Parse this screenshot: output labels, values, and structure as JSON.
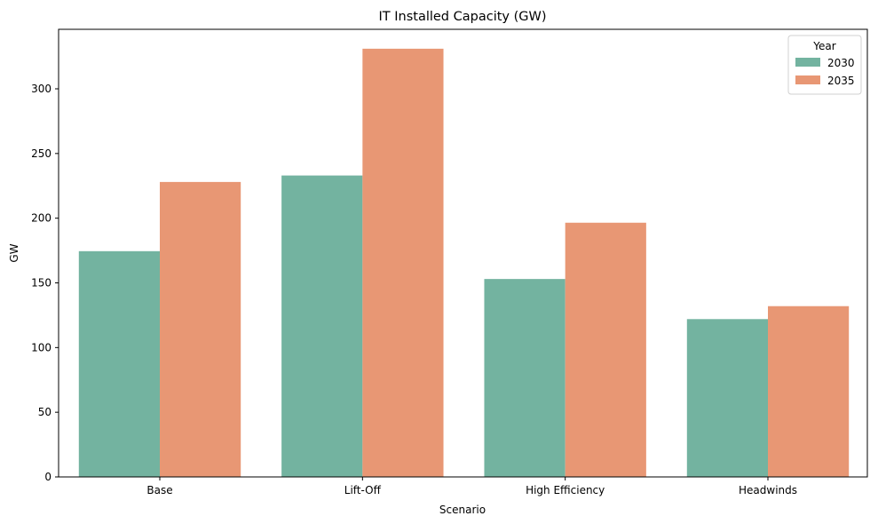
{
  "chart_data": {
    "type": "bar",
    "title": "IT Installed Capacity (GW)",
    "xlabel": "Scenario",
    "ylabel": "GW",
    "categories": [
      "Base",
      "Lift-Off",
      "High Efficiency",
      "Headwinds"
    ],
    "series": [
      {
        "name": "2030",
        "values": [
          174.5,
          233,
          153,
          122
        ],
        "color": "#73b3a0"
      },
      {
        "name": "2035",
        "values": [
          228,
          331,
          196.5,
          132
        ],
        "color": "#e89774"
      }
    ],
    "ylim": [
      0,
      346
    ],
    "yticks": [
      0,
      50,
      100,
      150,
      200,
      250,
      300
    ],
    "ytick_labels": [
      "0",
      "50",
      "100",
      "150",
      "200",
      "250",
      "300"
    ],
    "grid": false,
    "legend": {
      "title": "Year",
      "position": "top-right",
      "labels": [
        "2030",
        "2035"
      ]
    }
  }
}
